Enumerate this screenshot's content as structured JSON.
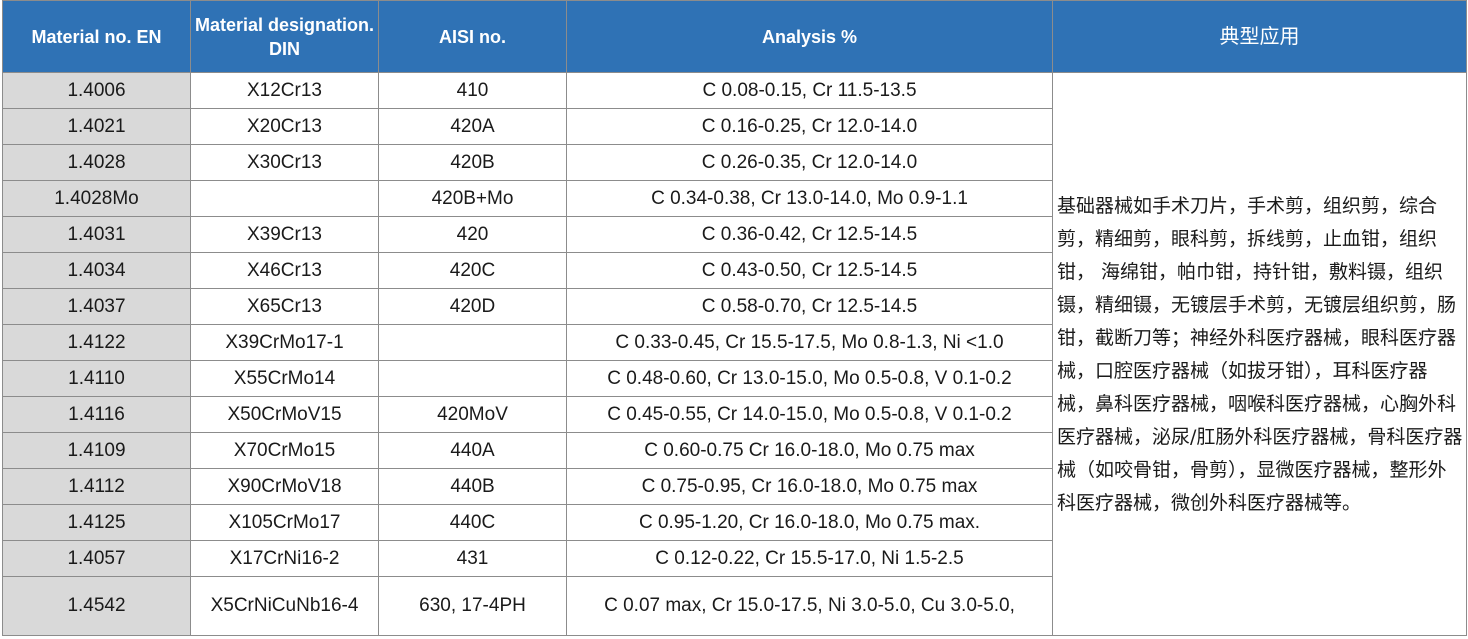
{
  "columns": [
    "Material no. EN",
    "Material designation. DIN",
    "AISI no.",
    "Analysis %",
    "典型应用"
  ],
  "rows": [
    {
      "en": "1.4006",
      "din": "X12Cr13",
      "aisi": "410",
      "analysis": "C 0.08-0.15, Cr 11.5-13.5"
    },
    {
      "en": "1.4021",
      "din": "X20Cr13",
      "aisi": "420A",
      "analysis": "C 0.16-0.25, Cr 12.0-14.0"
    },
    {
      "en": "1.4028",
      "din": "X30Cr13",
      "aisi": "420B",
      "analysis": "C 0.26-0.35, Cr 12.0-14.0"
    },
    {
      "en": "1.4028Mo",
      "din": "",
      "aisi": "420B+Mo",
      "analysis": "C 0.34-0.38, Cr 13.0-14.0, Mo 0.9-1.1"
    },
    {
      "en": "1.4031",
      "din": "X39Cr13",
      "aisi": "420",
      "analysis": "C 0.36-0.42, Cr 12.5-14.5"
    },
    {
      "en": "1.4034",
      "din": "X46Cr13",
      "aisi": "420C",
      "analysis": "C 0.43-0.50, Cr 12.5-14.5"
    },
    {
      "en": "1.4037",
      "din": "X65Cr13",
      "aisi": "420D",
      "analysis": "C 0.58-0.70, Cr 12.5-14.5"
    },
    {
      "en": "1.4122",
      "din": "X39CrMo17-1",
      "aisi": "",
      "analysis": "C 0.33-0.45, Cr 15.5-17.5, Mo 0.8-1.3, Ni <1.0"
    },
    {
      "en": "1.4110",
      "din": "X55CrMo14",
      "aisi": "",
      "analysis": "C 0.48-0.60, Cr 13.0-15.0, Mo 0.5-0.8, V 0.1-0.2"
    },
    {
      "en": "1.4116",
      "din": "X50CrMoV15",
      "aisi": "420MoV",
      "analysis": "C 0.45-0.55, Cr 14.0-15.0, Mo 0.5-0.8, V 0.1-0.2"
    },
    {
      "en": "1.4109",
      "din": "X70CrMo15",
      "aisi": "440A",
      "analysis": "C 0.60-0.75 Cr 16.0-18.0, Mo 0.75 max"
    },
    {
      "en": "1.4112",
      "din": "X90CrMoV18",
      "aisi": "440B",
      "analysis": "C 0.75-0.95, Cr 16.0-18.0, Mo 0.75 max"
    },
    {
      "en": "1.4125",
      "din": "X105CrMo17",
      "aisi": "440C",
      "analysis": "C 0.95-1.20, Cr 16.0-18.0, Mo 0.75 max."
    },
    {
      "en": "1.4057",
      "din": "X17CrNi16-2",
      "aisi": "431",
      "analysis": "C 0.12-0.22, Cr 15.5-17.0, Ni 1.5-2.5"
    },
    {
      "en": "1.4542",
      "din": "X5CrNiCuNb16-4",
      "aisi": "630, 17-4PH",
      "analysis": "C 0.07 max, Cr 15.0-17.5, Ni 3.0-5.0, Cu 3.0-5.0,"
    }
  ],
  "application": "基础器械如手术刀片，手术剪，组织剪，综合剪，精细剪，眼科剪，拆线剪，止血钳，组织钳， 海绵钳，帕巾钳，持针钳，敷料镊，组织镊，精细镊，无镀层手术剪，无镀层组织剪，肠钳，截断刀等；神经外科医疗器械，眼科医疗器械，口腔医疗器械（如拔牙钳），耳科医疗器械，鼻科医疗器械，咽喉科医疗器械，心胸外科医疗器械，泌尿/肛肠外科医疗器械，骨科医疗器械（如咬骨钳，骨剪），显微医疗器械，整形外科医疗器械，微创外科医疗器械等。",
  "colors": {
    "header_bg": "#2f72b5",
    "header_text": "#ffffff",
    "first_col_bg": "#d9d9d9",
    "border": "#8c8c8c"
  }
}
